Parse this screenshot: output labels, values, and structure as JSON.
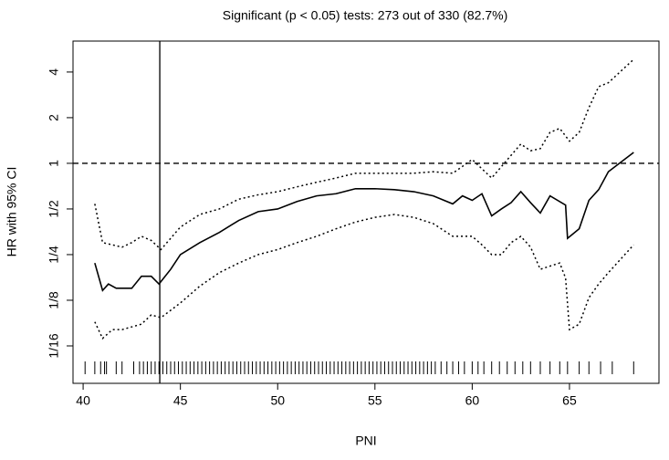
{
  "chart_data": {
    "type": "line",
    "title": "Significant (p < 0.05) tests: 273 out of 330 (82.7%)",
    "xlabel": "PNI",
    "ylabel": "HR with 95% CI",
    "xlim": [
      39.48,
      69.6
    ],
    "xticks": [
      40,
      45,
      50,
      55,
      60,
      65
    ],
    "ylim": [
      0.0354,
      6.4
    ],
    "log_y": true,
    "yticks": [
      {
        "value": 0.0625,
        "label": "1/16"
      },
      {
        "value": 0.125,
        "label": "1/8"
      },
      {
        "value": 0.25,
        "label": "1/4"
      },
      {
        "value": 0.5,
        "label": "1/2"
      },
      1,
      2,
      4
    ],
    "hline": 1,
    "vline": 43.94,
    "series": [
      {
        "name": "HR",
        "color": "#000000",
        "style": "solid",
        "x": [
          40.6,
          41.0,
          41.3,
          41.7,
          42.5,
          43.0,
          43.5,
          43.9,
          44.5,
          45,
          46,
          47,
          48,
          49,
          50,
          51,
          52,
          53,
          54,
          55,
          56,
          57,
          58,
          59,
          59.5,
          60,
          60.5,
          61,
          61.5,
          62,
          62.5,
          63,
          63.5,
          64,
          64.8,
          64.9,
          65.5,
          66,
          66.5,
          67,
          68.3
        ],
        "values": [
          0.22,
          0.145,
          0.16,
          0.15,
          0.15,
          0.18,
          0.18,
          0.16,
          0.2,
          0.25,
          0.3,
          0.35,
          0.42,
          0.48,
          0.5,
          0.56,
          0.61,
          0.63,
          0.68,
          0.68,
          0.67,
          0.65,
          0.61,
          0.54,
          0.61,
          0.57,
          0.63,
          0.45,
          0.5,
          0.55,
          0.65,
          0.55,
          0.47,
          0.61,
          0.53,
          0.32,
          0.37,
          0.57,
          0.67,
          0.88,
          1.18
        ]
      },
      {
        "name": "Upper 95% CI",
        "color": "#000000",
        "style": "dotted",
        "x": [
          40.6,
          41,
          41.5,
          42,
          42.5,
          43,
          43.5,
          44,
          45,
          46,
          47,
          48,
          49,
          50,
          51,
          52,
          53,
          54,
          55,
          56,
          57,
          58,
          59,
          60,
          60.5,
          61,
          62,
          62.5,
          63,
          63.5,
          64,
          64.5,
          65,
          65.5,
          66,
          66.5,
          67,
          68.3
        ],
        "values": [
          0.54,
          0.3,
          0.29,
          0.28,
          0.3,
          0.33,
          0.31,
          0.27,
          0.38,
          0.46,
          0.5,
          0.58,
          0.62,
          0.65,
          0.7,
          0.75,
          0.8,
          0.86,
          0.86,
          0.86,
          0.86,
          0.88,
          0.86,
          1.06,
          0.92,
          0.8,
          1.13,
          1.34,
          1.21,
          1.25,
          1.6,
          1.7,
          1.4,
          1.6,
          2.33,
          3.2,
          3.4,
          4.85
        ]
      },
      {
        "name": "Lower 95% CI",
        "color": "#000000",
        "style": "dotted",
        "x": [
          40.6,
          41,
          41.5,
          42,
          43,
          43.5,
          44,
          45,
          46,
          47,
          48,
          49,
          50,
          51,
          52,
          53,
          54,
          55,
          56,
          57,
          58,
          59,
          60,
          60.5,
          61,
          61.5,
          62,
          62.5,
          63,
          63.5,
          64,
          64.5,
          64.8,
          65,
          65.5,
          66,
          66.5,
          67,
          68.3
        ],
        "values": [
          0.09,
          0.07,
          0.08,
          0.08,
          0.087,
          0.1,
          0.096,
          0.12,
          0.155,
          0.19,
          0.22,
          0.25,
          0.27,
          0.3,
          0.33,
          0.37,
          0.41,
          0.44,
          0.46,
          0.44,
          0.4,
          0.33,
          0.33,
          0.29,
          0.25,
          0.25,
          0.3,
          0.33,
          0.28,
          0.2,
          0.21,
          0.22,
          0.175,
          0.08,
          0.087,
          0.13,
          0.16,
          0.19,
          0.29
        ]
      }
    ],
    "rug": [
      40.1,
      40.6,
      40.9,
      41.1,
      41.2,
      41.7,
      42.0,
      42.6,
      42.9,
      43.1,
      43.3,
      43.5,
      43.7,
      43.9,
      44.1,
      44.3,
      44.5,
      44.7,
      44.9,
      45.1,
      45.3,
      45.5,
      45.7,
      45.9,
      46.1,
      46.3,
      46.5,
      46.7,
      46.9,
      47.1,
      47.3,
      47.5,
      47.7,
      47.9,
      48.1,
      48.3,
      48.5,
      48.7,
      48.9,
      49.1,
      49.3,
      49.5,
      49.7,
      49.9,
      50.1,
      50.3,
      50.5,
      50.7,
      50.9,
      51.1,
      51.3,
      51.5,
      51.7,
      51.9,
      52.1,
      52.3,
      52.5,
      52.7,
      52.9,
      53.1,
      53.3,
      53.5,
      53.7,
      53.9,
      54.1,
      54.3,
      54.5,
      54.7,
      54.9,
      55.1,
      55.3,
      55.5,
      55.7,
      55.9,
      56.1,
      56.3,
      56.5,
      56.7,
      56.9,
      57.1,
      57.3,
      57.5,
      57.7,
      57.9,
      58.1,
      58.4,
      58.7,
      59.0,
      59.3,
      59.6,
      60.0,
      60.3,
      60.6,
      61.0,
      61.4,
      61.8,
      62.2,
      62.6,
      63.0,
      63.5,
      64.0,
      64.5,
      64.9,
      65.5,
      66.0,
      66.6,
      67.2,
      68.3
    ]
  }
}
